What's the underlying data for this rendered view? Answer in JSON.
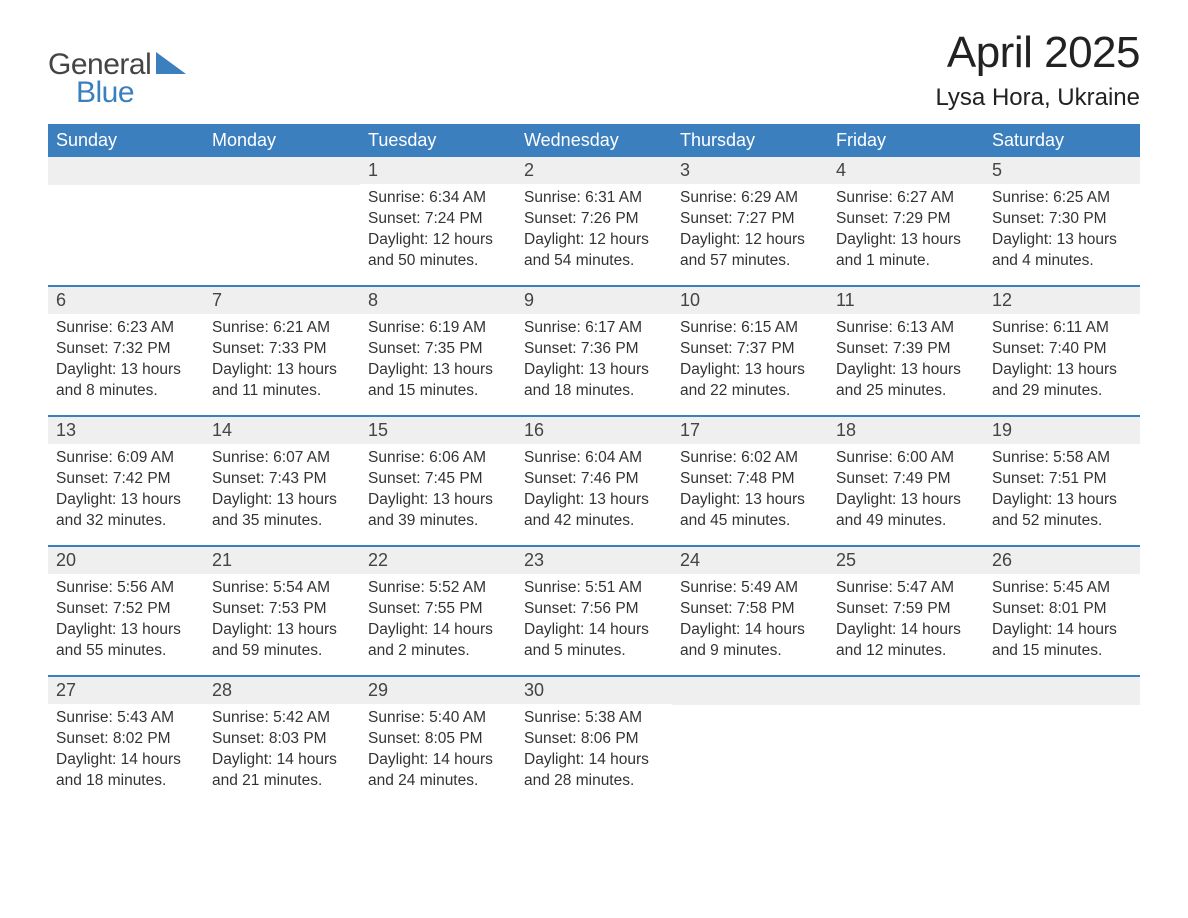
{
  "logo": {
    "word1": "General",
    "word2": "Blue",
    "tri_color": "#3b7fbf"
  },
  "title": "April 2025",
  "location": "Lysa Hora, Ukraine",
  "colors": {
    "header_bg": "#3b7fbf",
    "header_text": "#ffffff",
    "week_border": "#3b7fbf",
    "daynum_bg": "#efefef",
    "body_text": "#333333",
    "background": "#ffffff"
  },
  "day_headers": [
    "Sunday",
    "Monday",
    "Tuesday",
    "Wednesday",
    "Thursday",
    "Friday",
    "Saturday"
  ],
  "labels": {
    "sunrise": "Sunrise:",
    "sunset": "Sunset:",
    "daylight": "Daylight:"
  },
  "weeks": [
    [
      null,
      null,
      {
        "d": "1",
        "sr": "6:34 AM",
        "ss": "7:24 PM",
        "dl": "12 hours and 50 minutes."
      },
      {
        "d": "2",
        "sr": "6:31 AM",
        "ss": "7:26 PM",
        "dl": "12 hours and 54 minutes."
      },
      {
        "d": "3",
        "sr": "6:29 AM",
        "ss": "7:27 PM",
        "dl": "12 hours and 57 minutes."
      },
      {
        "d": "4",
        "sr": "6:27 AM",
        "ss": "7:29 PM",
        "dl": "13 hours and 1 minute."
      },
      {
        "d": "5",
        "sr": "6:25 AM",
        "ss": "7:30 PM",
        "dl": "13 hours and 4 minutes."
      }
    ],
    [
      {
        "d": "6",
        "sr": "6:23 AM",
        "ss": "7:32 PM",
        "dl": "13 hours and 8 minutes."
      },
      {
        "d": "7",
        "sr": "6:21 AM",
        "ss": "7:33 PM",
        "dl": "13 hours and 11 minutes."
      },
      {
        "d": "8",
        "sr": "6:19 AM",
        "ss": "7:35 PM",
        "dl": "13 hours and 15 minutes."
      },
      {
        "d": "9",
        "sr": "6:17 AM",
        "ss": "7:36 PM",
        "dl": "13 hours and 18 minutes."
      },
      {
        "d": "10",
        "sr": "6:15 AM",
        "ss": "7:37 PM",
        "dl": "13 hours and 22 minutes."
      },
      {
        "d": "11",
        "sr": "6:13 AM",
        "ss": "7:39 PM",
        "dl": "13 hours and 25 minutes."
      },
      {
        "d": "12",
        "sr": "6:11 AM",
        "ss": "7:40 PM",
        "dl": "13 hours and 29 minutes."
      }
    ],
    [
      {
        "d": "13",
        "sr": "6:09 AM",
        "ss": "7:42 PM",
        "dl": "13 hours and 32 minutes."
      },
      {
        "d": "14",
        "sr": "6:07 AM",
        "ss": "7:43 PM",
        "dl": "13 hours and 35 minutes."
      },
      {
        "d": "15",
        "sr": "6:06 AM",
        "ss": "7:45 PM",
        "dl": "13 hours and 39 minutes."
      },
      {
        "d": "16",
        "sr": "6:04 AM",
        "ss": "7:46 PM",
        "dl": "13 hours and 42 minutes."
      },
      {
        "d": "17",
        "sr": "6:02 AM",
        "ss": "7:48 PM",
        "dl": "13 hours and 45 minutes."
      },
      {
        "d": "18",
        "sr": "6:00 AM",
        "ss": "7:49 PM",
        "dl": "13 hours and 49 minutes."
      },
      {
        "d": "19",
        "sr": "5:58 AM",
        "ss": "7:51 PM",
        "dl": "13 hours and 52 minutes."
      }
    ],
    [
      {
        "d": "20",
        "sr": "5:56 AM",
        "ss": "7:52 PM",
        "dl": "13 hours and 55 minutes."
      },
      {
        "d": "21",
        "sr": "5:54 AM",
        "ss": "7:53 PM",
        "dl": "13 hours and 59 minutes."
      },
      {
        "d": "22",
        "sr": "5:52 AM",
        "ss": "7:55 PM",
        "dl": "14 hours and 2 minutes."
      },
      {
        "d": "23",
        "sr": "5:51 AM",
        "ss": "7:56 PM",
        "dl": "14 hours and 5 minutes."
      },
      {
        "d": "24",
        "sr": "5:49 AM",
        "ss": "7:58 PM",
        "dl": "14 hours and 9 minutes."
      },
      {
        "d": "25",
        "sr": "5:47 AM",
        "ss": "7:59 PM",
        "dl": "14 hours and 12 minutes."
      },
      {
        "d": "26",
        "sr": "5:45 AM",
        "ss": "8:01 PM",
        "dl": "14 hours and 15 minutes."
      }
    ],
    [
      {
        "d": "27",
        "sr": "5:43 AM",
        "ss": "8:02 PM",
        "dl": "14 hours and 18 minutes."
      },
      {
        "d": "28",
        "sr": "5:42 AM",
        "ss": "8:03 PM",
        "dl": "14 hours and 21 minutes."
      },
      {
        "d": "29",
        "sr": "5:40 AM",
        "ss": "8:05 PM",
        "dl": "14 hours and 24 minutes."
      },
      {
        "d": "30",
        "sr": "5:38 AM",
        "ss": "8:06 PM",
        "dl": "14 hours and 28 minutes."
      },
      null,
      null,
      null
    ]
  ]
}
